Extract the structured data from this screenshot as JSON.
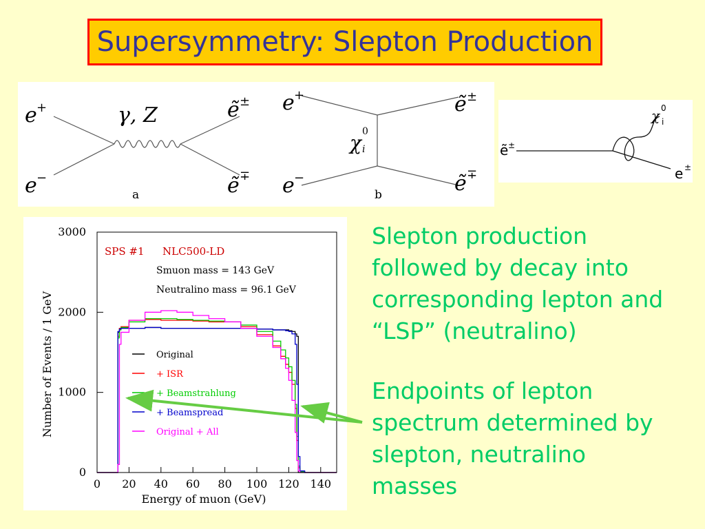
{
  "slide": {
    "title": "Supersymmetry: Slepton Production",
    "colors": {
      "background": "#ffffcc",
      "title_bg": "#ffcc00",
      "title_border": "#ff0000",
      "title_text": "#333399",
      "bullet_text": "#00cc66",
      "arrow": "#66cc44"
    },
    "bullets": [
      "Slepton production followed by decay into corresponding lepton and “LSP” (neutralino)",
      "Endpoints of lepton spectrum determined by slepton, neutralino masses"
    ]
  },
  "feynman_a": {
    "label": "a",
    "incoming_top": "e",
    "incoming_top_sup": "+",
    "incoming_bottom": "e",
    "incoming_bottom_sup": "−",
    "exchange": "γ, Z",
    "outgoing_top": "ẽ",
    "outgoing_top_sup": "±",
    "outgoing_bottom": "ẽ",
    "outgoing_bottom_sup": "∓"
  },
  "feynman_b": {
    "label": "b",
    "incoming_top": "e",
    "incoming_top_sup": "+",
    "incoming_bottom": "e",
    "incoming_bottom_sup": "−",
    "exchange": "χ",
    "exchange_sup": "0",
    "exchange_sub": "i",
    "outgoing_top": "ẽ",
    "outgoing_top_sup": "±",
    "outgoing_bottom": "ẽ",
    "outgoing_bottom_sup": "∓"
  },
  "decay": {
    "initial": "ẽ",
    "initial_sup": "±",
    "neutralino": "χ",
    "neutralino_sup": "0",
    "neutralino_sub": "i",
    "lepton": "e",
    "lepton_sup": "±"
  },
  "chart_data": {
    "type": "line",
    "title": "",
    "header_left": "SPS #1",
    "header_right": "NLC500-LD",
    "annotations": [
      "Smuon mass = 143 GeV",
      "Neutralino mass = 96.1 GeV"
    ],
    "xlabel": "Energy of muon (GeV)",
    "ylabel": "Number of Events / 1 GeV",
    "xlim": [
      0,
      150
    ],
    "ylim": [
      0,
      3000
    ],
    "xticks": [
      0,
      20,
      40,
      60,
      80,
      100,
      120,
      140
    ],
    "yticks": [
      0,
      1000,
      2000,
      3000
    ],
    "grid": false,
    "legend_position": "center-left",
    "x": [
      0,
      5,
      10,
      12,
      13,
      14,
      15,
      20,
      30,
      40,
      50,
      60,
      70,
      80,
      90,
      100,
      110,
      115,
      118,
      120,
      122,
      124,
      125,
      126,
      127,
      130,
      140,
      150
    ],
    "series": [
      {
        "name": "Original",
        "color": "#000000",
        "values": [
          0,
          0,
          0,
          0,
          1750,
          1800,
          1800,
          1800,
          1810,
          1800,
          1800,
          1800,
          1800,
          1800,
          1800,
          1790,
          1780,
          1780,
          1780,
          1770,
          1760,
          1730,
          1700,
          0,
          0,
          0,
          0,
          0
        ]
      },
      {
        "name": "+ ISR",
        "color": "#ff0000",
        "values": [
          0,
          0,
          0,
          0,
          1700,
          1800,
          1820,
          1900,
          1910,
          1900,
          1900,
          1890,
          1880,
          1880,
          1820,
          1720,
          1580,
          1450,
          1350,
          1250,
          1100,
          800,
          400,
          60,
          10,
          0,
          0,
          0
        ]
      },
      {
        "name": "+ Beamstrahlung",
        "color": "#00cc00",
        "values": [
          0,
          0,
          0,
          0,
          1680,
          1780,
          1810,
          1880,
          1920,
          1920,
          1910,
          1900,
          1890,
          1880,
          1840,
          1760,
          1640,
          1530,
          1430,
          1320,
          1150,
          850,
          450,
          80,
          10,
          0,
          0,
          0
        ]
      },
      {
        "name": "+ Beamspread",
        "color": "#0000cc",
        "values": [
          0,
          0,
          0,
          0,
          1760,
          1790,
          1800,
          1800,
          1810,
          1800,
          1800,
          1800,
          1800,
          1800,
          1800,
          1790,
          1780,
          1780,
          1770,
          1760,
          1730,
          1600,
          1100,
          200,
          20,
          0,
          0,
          0
        ]
      },
      {
        "name": "Original + All",
        "color": "#ff00ff",
        "values": [
          0,
          0,
          0,
          0,
          100,
          1600,
          1750,
          1900,
          2000,
          2020,
          2000,
          1960,
          1920,
          1880,
          1800,
          1700,
          1560,
          1420,
          1300,
          1150,
          900,
          500,
          150,
          20,
          0,
          0,
          0,
          0
        ]
      }
    ]
  }
}
